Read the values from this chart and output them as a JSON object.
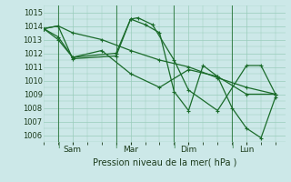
{
  "bg_color": "#cce8e8",
  "grid_color": "#99ccbb",
  "line_color": "#1a6b2a",
  "ylabel": "Pression niveau de la mer( hPa )",
  "ylim": [
    1005.5,
    1015.5
  ],
  "yticks": [
    1006,
    1007,
    1008,
    1009,
    1010,
    1011,
    1012,
    1013,
    1014,
    1015
  ],
  "xtick_labels": [
    "Sam",
    "Mar",
    "Dim",
    "Lun"
  ],
  "xtick_positions": [
    24,
    72,
    120,
    168
  ],
  "x_vlines": [
    12,
    60,
    108,
    156
  ],
  "xlim": [
    0,
    200
  ],
  "series": [
    {
      "x": [
        0,
        12,
        24,
        48,
        72,
        96,
        120,
        144,
        168,
        192
      ],
      "y": [
        1013.8,
        1014.0,
        1013.5,
        1013.0,
        1012.2,
        1011.5,
        1011.0,
        1010.2,
        1009.5,
        1009.0
      ]
    },
    {
      "x": [
        0,
        12,
        24,
        60,
        72,
        78,
        90,
        108,
        120,
        144,
        168,
        180,
        192
      ],
      "y": [
        1013.8,
        1014.0,
        1011.6,
        1011.8,
        1014.5,
        1014.6,
        1014.1,
        1011.5,
        1009.3,
        1007.8,
        1011.1,
        1011.1,
        1009.0
      ]
    },
    {
      "x": [
        0,
        12,
        24,
        60,
        72,
        84,
        96,
        108,
        120,
        132,
        144,
        156,
        168,
        180,
        192
      ],
      "y": [
        1013.8,
        1013.2,
        1011.7,
        1012.0,
        1014.5,
        1014.1,
        1013.5,
        1009.2,
        1007.8,
        1011.1,
        1010.3,
        1008.0,
        1006.5,
        1005.8,
        1008.8
      ]
    },
    {
      "x": [
        0,
        12,
        24,
        48,
        72,
        96,
        120,
        144,
        168,
        192
      ],
      "y": [
        1013.8,
        1013.0,
        1011.7,
        1012.2,
        1010.5,
        1009.5,
        1010.8,
        1010.3,
        1009.0,
        1009.0
      ]
    }
  ]
}
